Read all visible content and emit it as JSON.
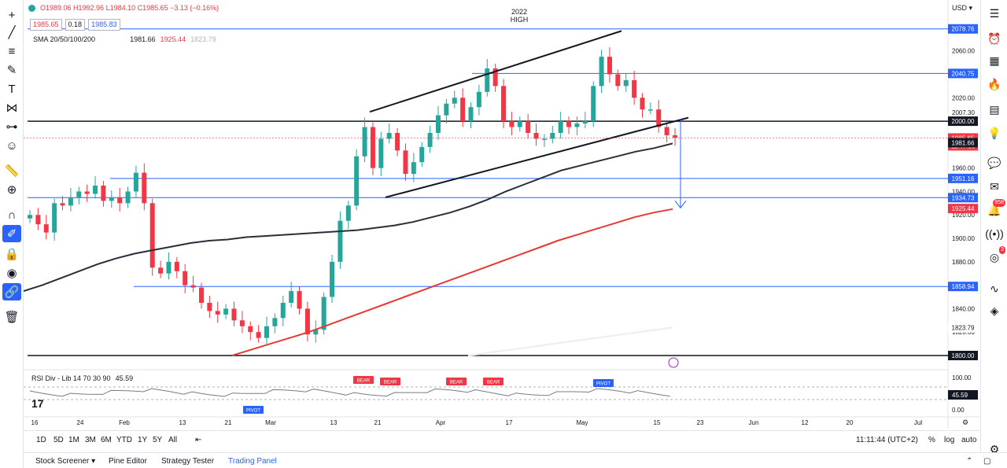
{
  "toolbar_left": [
    "crosshair-icon",
    "trend-line-icon",
    "horizontal-lines-icon",
    "brush-icon",
    "text-icon",
    "pattern-icon",
    "measure-icon",
    "emoji-icon",
    "ruler-icon",
    "zoom-icon",
    "magnet-icon",
    "lock-drawing-icon",
    "lock-icon",
    "eye-icon",
    "link-icon",
    "trash-icon"
  ],
  "legend": {
    "ohlc": "O1989.06 H1992.96 L1984.10 C1985.65 −3.13 (−0.16%)",
    "box1": "1985.65",
    "box2": "0.18",
    "box3": "1985.83",
    "sma_label": "SMA 20/50/100/200",
    "sma_v1": "1981.66",
    "sma_v2": "1925.44",
    "sma_v3": "1823.79"
  },
  "high_label": [
    "2022",
    "HIGH"
  ],
  "rsi": {
    "label": "RSI Div - Lib 14 70 30 90",
    "value": "45.59"
  },
  "usd": "USD ▾",
  "bottom": {
    "ranges": [
      "1D",
      "5D",
      "1M",
      "3M",
      "6M",
      "YTD",
      "1Y",
      "5Y",
      "All"
    ],
    "time": "11:11:44 (UTC+2)",
    "pct": "%",
    "log": "log",
    "auto": "auto"
  },
  "footer": {
    "tabs": [
      "Stock Screener",
      "Pine Editor",
      "Strategy Tester",
      "Trading Panel"
    ]
  },
  "chart_data": {
    "type": "line",
    "ylim": [
      1800,
      2090
    ],
    "y_ticks": [
      "2060.00",
      "2020.00",
      "2007.30",
      "1960.00",
      "1940.00",
      "1920.00",
      "1900.00",
      "1880.00",
      "1840.00",
      "1820.00"
    ],
    "x_labels": [
      "16",
      "24",
      "Feb",
      "13",
      "21",
      "Mar",
      "13",
      "21",
      "Apr",
      "17",
      "May",
      "15",
      "23",
      "Jun",
      "12",
      "20",
      "Jul"
    ],
    "hlines": [
      {
        "label": "2078.76",
        "color": "#2962ff"
      },
      {
        "label": "2040.75",
        "color": "#2962ff"
      },
      {
        "label": "2000.00",
        "color": "#131722"
      },
      {
        "label": "1951.16",
        "color": "#2962ff"
      },
      {
        "label": "1934.73",
        "color": "#2962ff"
      },
      {
        "label": "1858.94",
        "color": "#2962ff"
      },
      {
        "label": "1800.00",
        "color": "#131722"
      }
    ],
    "price_labels": [
      {
        "text": "1985.65",
        "sub": "11:47:16",
        "color": "#f23645"
      },
      {
        "text": "1981.66",
        "color": "#131722"
      },
      {
        "text": "1925.44",
        "color": "#f23645"
      },
      {
        "text": "1823.79",
        "color": "#ffffff"
      }
    ],
    "closes": [
      1920,
      1912,
      1905,
      1930,
      1928,
      1935,
      1940,
      1938,
      1945,
      1932,
      1935,
      1930,
      1940,
      1956,
      1930,
      1875,
      1870,
      1880,
      1872,
      1860,
      1858,
      1845,
      1838,
      1835,
      1840,
      1830,
      1825,
      1820,
      1815,
      1825,
      1832,
      1845,
      1855,
      1840,
      1818,
      1822,
      1850,
      1880,
      1915,
      1928,
      1970,
      1995,
      1960,
      1985,
      1990,
      1975,
      1955,
      1965,
      1978,
      1990,
      2005,
      2015,
      2020,
      2000,
      2012,
      2025,
      2045,
      2030,
      2000,
      1995,
      2000,
      1990,
      1985,
      1985,
      1990,
      2000,
      1995,
      1998,
      2000,
      2030,
      2055,
      2040,
      2030,
      2035,
      2020,
      2010,
      2010,
      1995,
      1988,
      1986
    ],
    "sma50": [
      1855,
      1860,
      1866,
      1872,
      1878,
      1883,
      1887,
      1890,
      1893,
      1896,
      1898,
      1899,
      1901,
      1902,
      1903,
      1904,
      1905,
      1906,
      1907,
      1909,
      1911,
      1914,
      1918,
      1922,
      1927,
      1933,
      1940,
      1946,
      1952,
      1958,
      1962,
      1966,
      1970,
      1974,
      1977,
      1981
    ],
    "sma100": [
      1800,
      1805,
      1810,
      1815,
      1820,
      1826,
      1832,
      1838,
      1844,
      1850,
      1856,
      1862,
      1868,
      1874,
      1880,
      1886,
      1892,
      1898,
      1903,
      1908,
      1913,
      1918,
      1922,
      1925
    ],
    "sma200": [
      1800,
      1803,
      1806,
      1809,
      1812,
      1815,
      1818,
      1821,
      1823.8
    ],
    "rsi_tags": [
      "PIVOT",
      "BEAR",
      "BEAR",
      "BEAR",
      "BEAR",
      "PIVOT"
    ],
    "rsi_levels": [
      "100.00",
      "45.59",
      "0.00"
    ]
  }
}
